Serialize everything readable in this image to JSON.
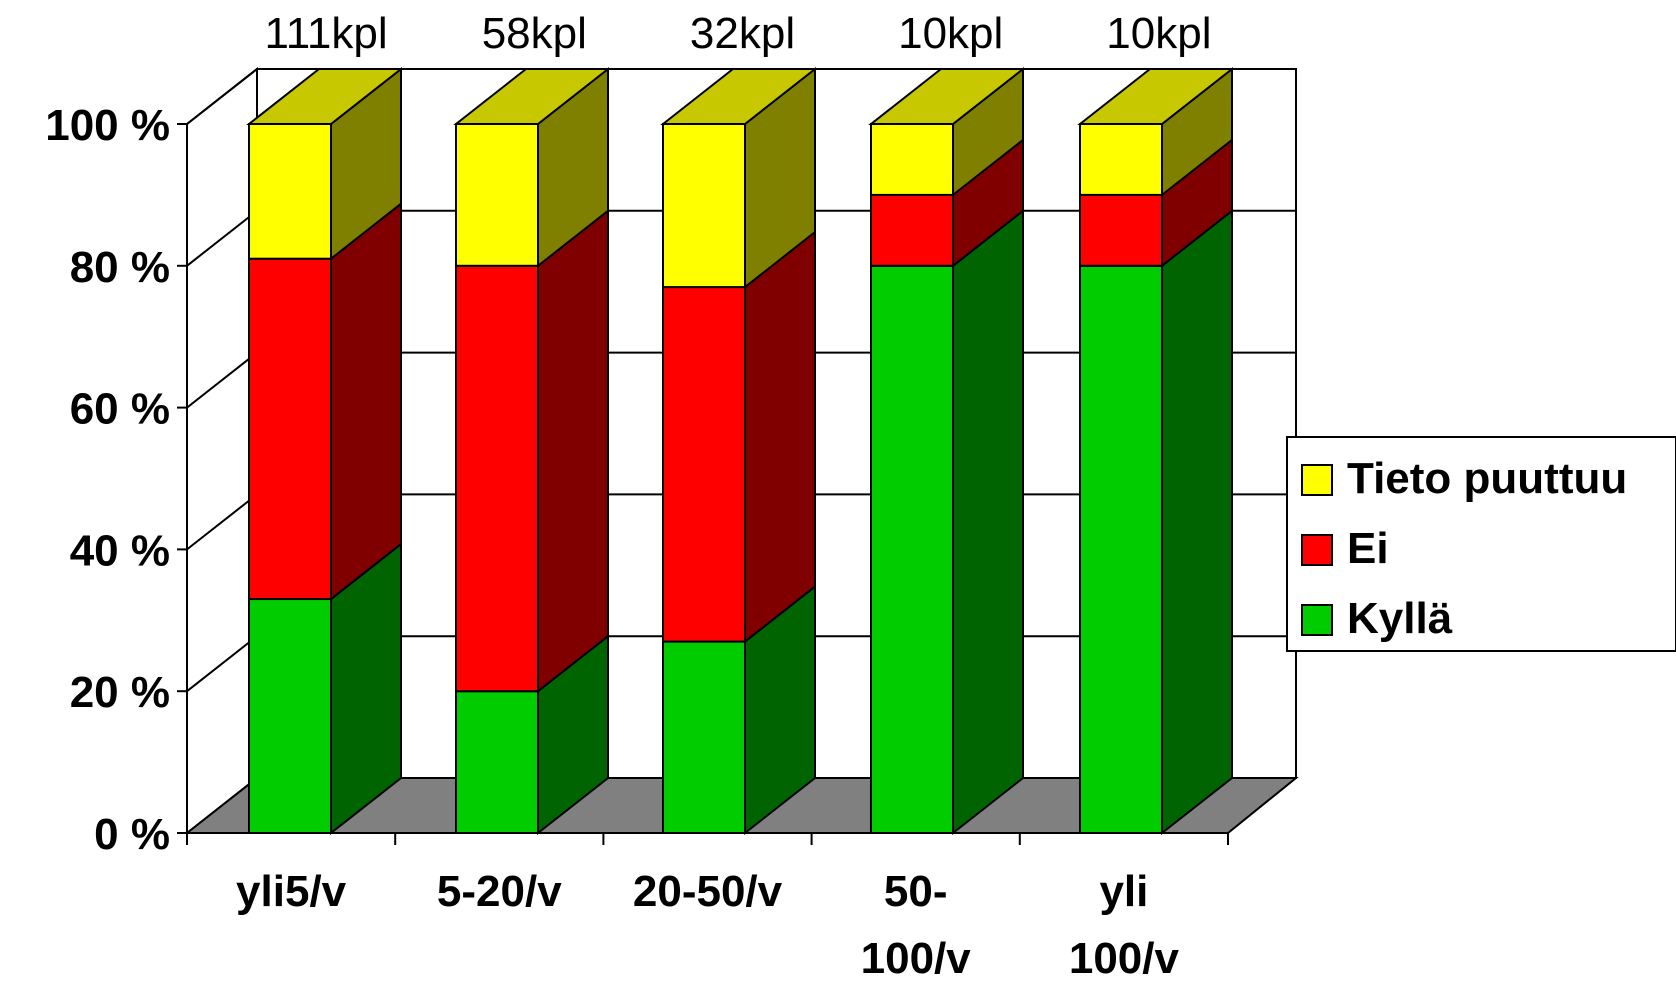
{
  "chart_data": {
    "type": "bar",
    "stacked": true,
    "three_d": true,
    "categories": [
      [
        "yli5/v"
      ],
      [
        "5-20/v"
      ],
      [
        "20-50/v"
      ],
      [
        "50-",
        "100/v"
      ],
      [
        "yli",
        "100/v"
      ]
    ],
    "counts": [
      "111kpl",
      "58kpl",
      "32kpl",
      "10kpl",
      "10kpl"
    ],
    "series": [
      {
        "name": "Kyllä",
        "values": [
          33,
          20,
          27,
          80,
          80
        ],
        "color": "#00cc00",
        "side_color": "#006400"
      },
      {
        "name": "Ei",
        "values": [
          48,
          60,
          50,
          10,
          10
        ],
        "color": "#ff0000",
        "side_color": "#800000"
      },
      {
        "name": "Tieto puuttuu",
        "values": [
          19,
          20,
          23,
          10,
          10
        ],
        "color": "#ffff00",
        "side_color": "#808000"
      }
    ],
    "y_ticks": [
      "0 %",
      "20 %",
      "40 %",
      "60 %",
      "80 %",
      "100 %"
    ],
    "ylim": [
      0,
      100
    ],
    "grid": true,
    "legend_position": "right",
    "legend_order": [
      "Tieto puuttuu",
      "Ei",
      "Kyllä"
    ],
    "floor_color": "#808080"
  }
}
